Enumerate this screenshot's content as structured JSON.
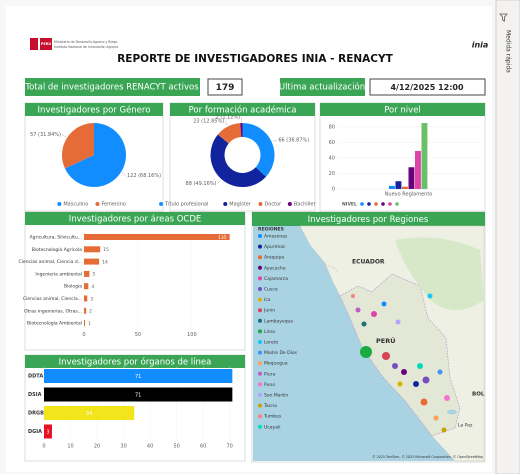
{
  "header": {
    "title": "REPORTE DE INVESTIGADORES INIA - RENACYT",
    "logo_country": "PERÚ",
    "logo_ministry": "Ministerio de Desarrollo Agrario y Riego",
    "logo_institute": "Instituto Nacional de Innovación Agraria",
    "logo_right": "inia",
    "side_panel": "Medida rápida"
  },
  "kpis": {
    "total_label": "Total de investigadores RENACYT activos",
    "total_value": 179,
    "update_label": "Ultima actualización",
    "update_value": "4/12/2025 12:00"
  },
  "charts": [
    {
      "type": "pie",
      "title": "Investigadores por Género",
      "categories": [
        "Masculino",
        "Femenino"
      ],
      "values": [
        122,
        57
      ],
      "value_labels": [
        "122 (68.16%)",
        "57 (31.84%)"
      ],
      "colors": [
        "#118dff",
        "#e66c37"
      ]
    },
    {
      "type": "donut",
      "title": "Por formación académica",
      "categories": [
        "Título profesional",
        "Magíster",
        "Doctor",
        "Bachiller"
      ],
      "values": [
        66,
        88,
        23,
        2
      ],
      "value_labels": [
        "66 (36.87%)",
        "88 (49.16%)",
        "23 (12.85%)",
        "2 (1.12%)"
      ],
      "colors": [
        "#118dff",
        "#12239e",
        "#e66c37",
        "#6b007b"
      ]
    },
    {
      "type": "bar",
      "title": "Por nivel",
      "legend_title": "NIVEL",
      "categories": [
        "Nuevo Reglamento"
      ],
      "series": [
        {
          "color": "#118dff",
          "values": [
            4
          ]
        },
        {
          "color": "#12239e",
          "values": [
            10
          ]
        },
        {
          "color": "#e66c37",
          "values": [
            3
          ]
        },
        {
          "color": "#6b007b",
          "values": [
            28
          ]
        },
        {
          "color": "#e044a7",
          "values": [
            49
          ]
        },
        {
          "color": "#6abf69",
          "values": [
            85
          ]
        }
      ],
      "ylim": [
        0,
        85
      ],
      "yticks": [
        0,
        20,
        40,
        60,
        80
      ],
      "grid": true
    },
    {
      "type": "hbar",
      "title": "Investigadores por áreas OCDE",
      "categories": [
        "Agricultura, Silvicultu...",
        "Biotecnología Agrícola",
        "Ciencias animal, Ciencia d...",
        "Ingeniería ambiental",
        "Biología",
        "Ciencias animal, Ciencia...",
        "Otras ingenierías, Otras...",
        "Biotecnología Ambiental"
      ],
      "values": [
        135,
        15,
        14,
        5,
        4,
        3,
        2,
        1
      ],
      "color": "#e66c37",
      "xlim": [
        0,
        140
      ],
      "xticks": [
        0,
        50,
        100
      ],
      "grid": true
    },
    {
      "type": "hbar",
      "title": "Investigadores por órganos de línea",
      "categories": [
        "DDTA",
        "DSIA",
        "DRGB",
        "DGIA"
      ],
      "values": [
        71,
        71,
        34,
        3
      ],
      "colors": [
        "#118dff",
        "#000000",
        "#f2e51b",
        "#e81123"
      ],
      "xlim": [
        0,
        72
      ],
      "xticks": [
        0,
        10,
        20,
        30,
        40,
        50,
        60,
        70
      ],
      "grid": true
    }
  ],
  "map": {
    "title": "Investigadores por Regiones",
    "legend_title": "REGIONES",
    "regions": [
      {
        "name": "Amazonas",
        "color": "#118dff"
      },
      {
        "name": "Apurímac",
        "color": "#12239e"
      },
      {
        "name": "Arequipa",
        "color": "#e66c37"
      },
      {
        "name": "Ayacucho",
        "color": "#6b007b"
      },
      {
        "name": "Cajamarca",
        "color": "#e044a7"
      },
      {
        "name": "Cusco",
        "color": "#744ec2"
      },
      {
        "name": "Ica",
        "color": "#d9b300"
      },
      {
        "name": "Junín",
        "color": "#d64550"
      },
      {
        "name": "Lambayeque",
        "color": "#197278"
      },
      {
        "name": "Lima",
        "color": "#1aab40"
      },
      {
        "name": "Loreto",
        "color": "#15c6f4"
      },
      {
        "name": "Madre De Dios",
        "color": "#4092ff"
      },
      {
        "name": "Moquegua",
        "color": "#ffa058"
      },
      {
        "name": "Piura",
        "color": "#be5dc9"
      },
      {
        "name": "Puno",
        "color": "#f472d0"
      },
      {
        "name": "San Martín",
        "color": "#b5a1ff"
      },
      {
        "name": "Tacna",
        "color": "#c4a200"
      },
      {
        "name": "Tumbes",
        "color": "#ff8080"
      },
      {
        "name": "Ucayali",
        "color": "#00dbbc"
      }
    ],
    "label_ecuador": "ECUADOR",
    "label_peru": "PERÚ",
    "label_bolivia": "BOL",
    "label_lapaz": "La Paz",
    "attribution": "© 2025 TomTom, © 2025 Microsoft Corporation, © OpenStreetMap"
  }
}
